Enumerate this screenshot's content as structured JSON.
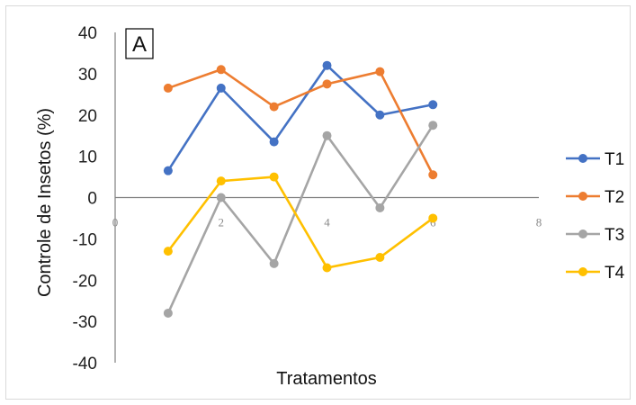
{
  "chart_data": {
    "type": "scatter",
    "panel_label": "A",
    "xlabel": "Tratamentos",
    "ylabel": "Controle de Insetos (%)",
    "xlim": [
      0,
      8
    ],
    "ylim": [
      -40,
      40
    ],
    "x_ticks": [
      "0",
      "2",
      "4",
      "6",
      "8"
    ],
    "y_ticks": [
      "40",
      "30",
      "20",
      "10",
      "0",
      "-10",
      "-20",
      "-30",
      "-40"
    ],
    "grid": false,
    "legend_position": "right",
    "x": [
      1,
      2,
      3,
      4,
      5,
      6
    ],
    "series": [
      {
        "name": "T1",
        "color": "#4472C4",
        "values": [
          6.5,
          26.5,
          13.5,
          32,
          20,
          22.5
        ]
      },
      {
        "name": "T2",
        "color": "#ED7D31",
        "values": [
          26.5,
          31,
          22,
          27.5,
          30.5,
          5.5
        ]
      },
      {
        "name": "T3",
        "color": "#A5A5A5",
        "values": [
          -28,
          0,
          -16,
          15,
          -2.5,
          17.5
        ]
      },
      {
        "name": "T4",
        "color": "#FFC000",
        "values": [
          -13,
          4,
          5,
          -17,
          -14.5,
          -5
        ]
      }
    ]
  }
}
